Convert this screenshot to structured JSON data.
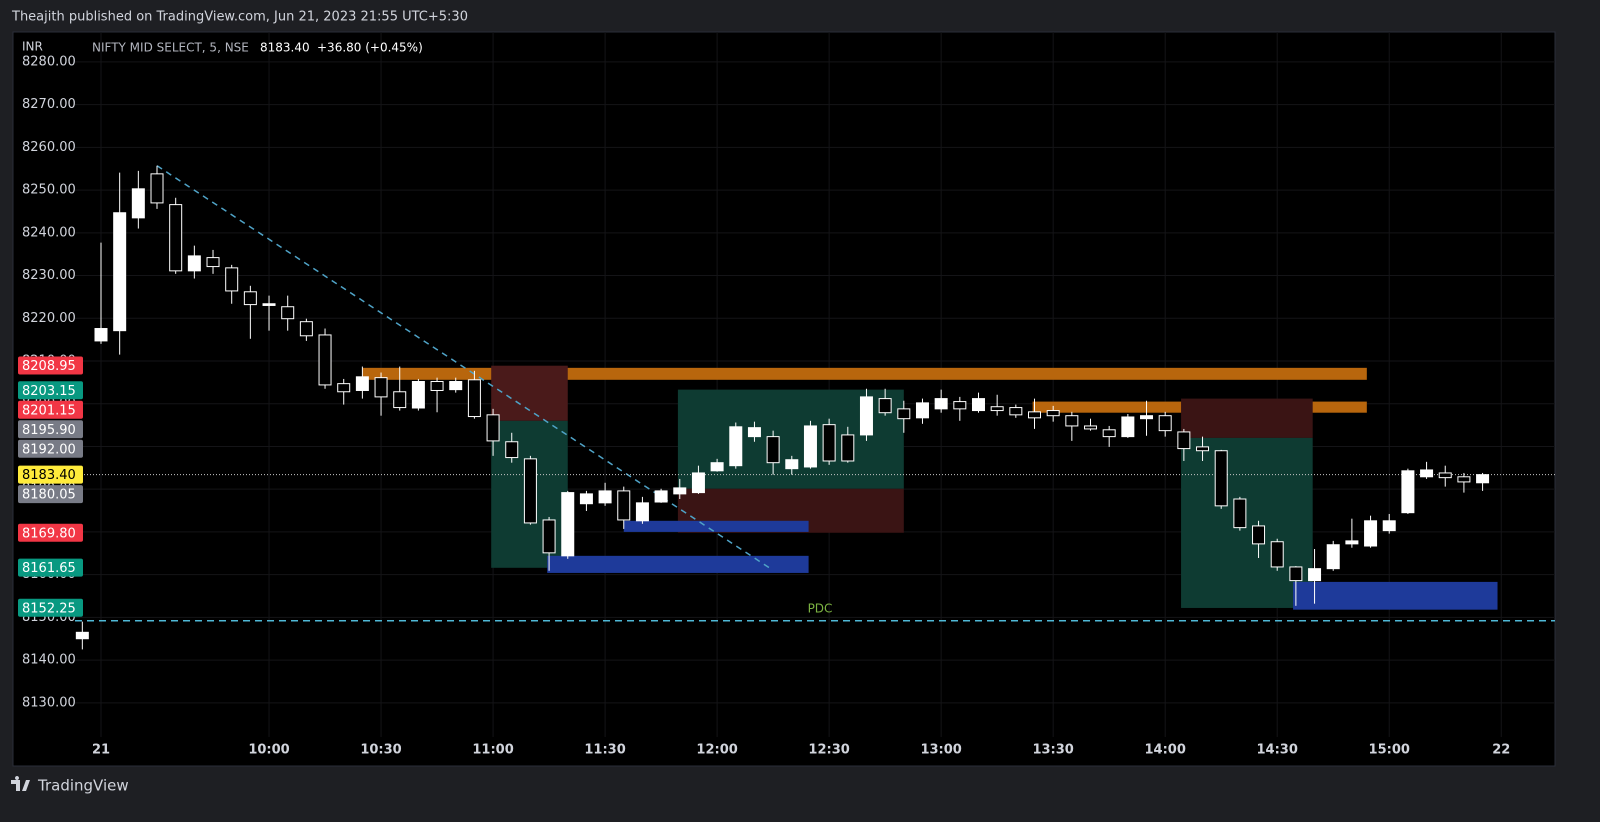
{
  "header": {
    "publisher": "Theajith published on TradingView.com, Jun 21, 2023 21:55 UTC+5:30"
  },
  "chart_data": {
    "type": "candlestick",
    "currency": "INR",
    "symbol": "NIFTY MID SELECT, 5, NSE",
    "last": "8183.40",
    "change": "+36.80 (+0.45%)",
    "up_color": "#ffffff",
    "down_color": "#000000",
    "wick_color": "#ffffff",
    "grid": true,
    "x": [
      -1,
      0,
      1,
      2,
      3,
      4,
      5,
      6,
      7,
      8,
      9,
      10,
      11,
      12,
      13,
      14,
      15,
      16,
      17,
      18,
      19,
      20,
      21,
      22,
      23,
      24,
      25,
      26,
      27,
      28,
      29,
      30,
      31,
      32,
      33,
      34,
      35,
      36,
      37,
      38,
      39,
      40,
      41,
      42,
      43,
      44,
      45,
      46,
      47,
      48,
      49,
      50,
      51,
      52,
      53,
      54,
      55,
      56,
      57,
      58,
      59,
      60,
      61,
      62,
      63,
      64,
      65,
      66,
      67,
      68,
      69,
      70,
      71,
      72,
      73,
      74
    ],
    "open": [
      8145,
      8214.7,
      8217.1,
      8243.5,
      8253.8,
      8246.6,
      8231.1,
      8234.2,
      8231.8,
      8226.2,
      8223,
      8222.7,
      8219.2,
      8216.1,
      8204.7,
      8203.1,
      8206.1,
      8202.8,
      8199,
      8205.2,
      8203.3,
      8205.6,
      8197.4,
      8191.1,
      8187.1,
      8172.8,
      8164.4,
      8176.6,
      8176.8,
      8179.6,
      8172.6,
      8177,
      8178.9,
      8179.2,
      8184.3,
      8185.5,
      8192.3,
      8192.3,
      8184.8,
      8185.2,
      8195.1,
      8192.7,
      8192.7,
      8201.2,
      8198.8,
      8196.7,
      8198.8,
      8200.5,
      8198.4,
      8199.3,
      8199.1,
      8198.1,
      8198.4,
      8197.2,
      8194.8,
      8193.9,
      8192.3,
      8196.5,
      8197.2,
      8193.4,
      8189.9,
      8189,
      8177.7,
      8171.4,
      8167.7,
      8161.8,
      8158.6,
      8161.4,
      8167.2,
      8166.7,
      8170.3,
      8174.5,
      8182.9,
      8183.8,
      8182.9,
      8181.5
    ],
    "high": [
      8149,
      8237.7,
      8254.1,
      8254.5,
      8255.7,
      8248.2,
      8237,
      8236,
      8232.5,
      8227.6,
      8225.3,
      8225.3,
      8219.9,
      8217.6,
      8205.8,
      8208.7,
      8207.3,
      8208.7,
      8205.8,
      8206.1,
      8206.1,
      8207.7,
      8198.8,
      8193.2,
      8187.8,
      8173.5,
      8179.6,
      8179.6,
      8181.5,
      8180.6,
      8178.2,
      8180.1,
      8182.4,
      8185.5,
      8187.1,
      8195.6,
      8195.8,
      8193.7,
      8187.8,
      8196,
      8196.5,
      8194.6,
      8203.5,
      8203.5,
      8200.7,
      8201.2,
      8203.3,
      8201.6,
      8202.6,
      8202.1,
      8199.8,
      8201.2,
      8199.5,
      8198.1,
      8196.5,
      8194.8,
      8197.6,
      8200.7,
      8198.1,
      8194.1,
      8192.3,
      8189.2,
      8178.2,
      8172.6,
      8168.4,
      8162,
      8166,
      8167.9,
      8173.1,
      8173.8,
      8174.2,
      8184.8,
      8186.4,
      8185.5,
      8183.8,
      8183.8
    ],
    "low": [
      8142.5,
      8214,
      8211.5,
      8241,
      8245.6,
      8230.4,
      8229.3,
      8230.4,
      8223.4,
      8215.2,
      8217.1,
      8217.1,
      8214.7,
      8203.5,
      8199.8,
      8201.2,
      8197.2,
      8198.4,
      8198.4,
      8198,
      8202.6,
      8196.5,
      8187.8,
      8186.2,
      8171.7,
      8160.9,
      8163.7,
      8174.9,
      8176.1,
      8170.7,
      8171.9,
      8176.8,
      8177.7,
      8178.9,
      8184.1,
      8184.8,
      8191.1,
      8183.4,
      8183.4,
      8184.8,
      8185.7,
      8186.2,
      8191.3,
      8197.2,
      8193.2,
      8195.3,
      8197.9,
      8196,
      8197.9,
      8197.2,
      8196.7,
      8194.1,
      8195.8,
      8191.3,
      8193.7,
      8189.9,
      8192,
      8192.5,
      8192.3,
      8186.6,
      8186.6,
      8175.4,
      8170.3,
      8163.9,
      8160.9,
      8152.7,
      8153.2,
      8160.9,
      8166.3,
      8166.3,
      8169.6,
      8174.2,
      8182.4,
      8180.6,
      8179.2,
      8179.6
    ],
    "close": [
      8146.5,
      8217.6,
      8244.7,
      8250.3,
      8247,
      8231.1,
      8234.6,
      8232.1,
      8226.4,
      8223.2,
      8223.4,
      8219.9,
      8215.9,
      8204.4,
      8202.8,
      8206.3,
      8201.6,
      8199.1,
      8205.2,
      8203.1,
      8205.2,
      8197,
      8191.3,
      8187.4,
      8172.1,
      8165.1,
      8179.2,
      8178.9,
      8179.6,
      8172.8,
      8176.8,
      8179.6,
      8180.3,
      8183.8,
      8186.2,
      8194.6,
      8194.4,
      8186.2,
      8186.9,
      8194.8,
      8186.6,
      8186.6,
      8201.6,
      8197.9,
      8196.5,
      8200.2,
      8201.2,
      8198.8,
      8201.2,
      8198.4,
      8197.4,
      8196.7,
      8197.2,
      8194.8,
      8194.1,
      8192.3,
      8196.9,
      8197.2,
      8193.7,
      8189.5,
      8189,
      8176.1,
      8171,
      8167.2,
      8161.8,
      8158.6,
      8161.4,
      8167,
      8167.9,
      8172.6,
      8172.6,
      8184.3,
      8184.5,
      8182.7,
      8181.7,
      8183.4
    ],
    "xlim": [
      -1.4,
      77.9
    ],
    "ylim": [
      8122,
      8287
    ],
    "xticks": [
      {
        "value": 0,
        "label": "21"
      },
      {
        "value": 9,
        "label": "10:00"
      },
      {
        "value": 15,
        "label": "10:30"
      },
      {
        "value": 21,
        "label": "11:00"
      },
      {
        "value": 27,
        "label": "11:30"
      },
      {
        "value": 33,
        "label": "12:00"
      },
      {
        "value": 39,
        "label": "12:30"
      },
      {
        "value": 45,
        "label": "13:00"
      },
      {
        "value": 51,
        "label": "13:30"
      },
      {
        "value": 57,
        "label": "14:00"
      },
      {
        "value": 63,
        "label": "14:30"
      },
      {
        "value": 69,
        "label": "15:00"
      },
      {
        "value": 75,
        "label": "22"
      }
    ],
    "yticks": [
      {
        "value": 8130,
        "label": "8130.00"
      },
      {
        "value": 8140,
        "label": "8140.00"
      },
      {
        "value": 8150,
        "label": "8150.00"
      },
      {
        "value": 8160,
        "label": "8160.00"
      },
      {
        "value": 8170,
        "label": "8170.00"
      },
      {
        "value": 8180,
        "label": "8180.00"
      },
      {
        "value": 8190,
        "label": "8190.00"
      },
      {
        "value": 8200,
        "label": "8200.00"
      },
      {
        "value": 8210,
        "label": "8210.00"
      },
      {
        "value": 8220,
        "label": "8220.00"
      },
      {
        "value": 8230,
        "label": "8230.00"
      },
      {
        "value": 8240,
        "label": "8240.00"
      },
      {
        "value": 8250,
        "label": "8250.00"
      },
      {
        "value": 8260,
        "label": "8260.00"
      },
      {
        "value": 8270,
        "label": "8270.00"
      },
      {
        "value": 8280,
        "label": "8280.00"
      }
    ],
    "price_labels": [
      {
        "value": 8208.95,
        "label": "8208.95",
        "color": "#f23645"
      },
      {
        "value": 8203.15,
        "label": "8203.15",
        "color": "#089981"
      },
      {
        "value": 8201.15,
        "label": "8201.15",
        "color": "#f23645"
      },
      {
        "value": 8195.9,
        "label": "8195.90",
        "color": "#787b86"
      },
      {
        "value": 8192,
        "label": "8192.00",
        "color": "#787b86"
      },
      {
        "value": 8183.4,
        "label": "8183.40",
        "color": "#ffeb3b"
      },
      {
        "value": 8180.05,
        "label": "8180.05",
        "color": "#787b86"
      },
      {
        "value": 8169.8,
        "label": "8169.80",
        "color": "#f23645"
      },
      {
        "value": 8161.65,
        "label": "8161.65",
        "color": "#089981"
      },
      {
        "value": 8152.25,
        "label": "8152.25",
        "color": "#089981"
      }
    ],
    "drawings": [
      {
        "kind": "rect",
        "x1": 14,
        "x2": 67.8,
        "y1": 8208.4,
        "y2": 8205.6,
        "color": "#b8660d"
      },
      {
        "kind": "rect",
        "x1": 49.9,
        "x2": 67.8,
        "y1": 8200.5,
        "y2": 8197.9,
        "color": "#b8660d"
      },
      {
        "kind": "rect",
        "x1": 20.9,
        "x2": 25,
        "y1": 8208.9,
        "y2": 8196,
        "color": "#4a1a1a"
      },
      {
        "kind": "rect",
        "x1": 20.9,
        "x2": 25,
        "y1": 8196,
        "y2": 8161.6,
        "color": "#0e3b32"
      },
      {
        "kind": "rect",
        "x1": 30.9,
        "x2": 43,
        "y1": 8203.3,
        "y2": 8180.1,
        "color": "#0e3b32"
      },
      {
        "kind": "rect",
        "x1": 30.9,
        "x2": 43,
        "y1": 8180.1,
        "y2": 8169.8,
        "color": "#3a1414"
      },
      {
        "kind": "rect",
        "x1": 57.85,
        "x2": 64.9,
        "y1": 8201.2,
        "y2": 8192,
        "color": "#3a1414"
      },
      {
        "kind": "rect",
        "x1": 57.85,
        "x2": 64.9,
        "y1": 8192,
        "y2": 8152.2,
        "color": "#0e3b32"
      },
      {
        "kind": "rect",
        "x1": 28,
        "x2": 37.9,
        "y1": 8172.6,
        "y2": 8170,
        "color": "#1e3a9a"
      },
      {
        "kind": "rect",
        "x1": 23.9,
        "x2": 37.9,
        "y1": 8164.4,
        "y2": 8160.4,
        "color": "#1e3a9a"
      },
      {
        "kind": "rect",
        "x1": 63.85,
        "x2": 74.8,
        "y1": 8158.3,
        "y2": 8151.8,
        "color": "#1e3a9a"
      },
      {
        "kind": "line",
        "x1": 3,
        "x2": 35.8,
        "y1": 8255.7,
        "y2": 8161.6,
        "color": "#4fa3c7"
      }
    ],
    "pdc": {
      "value": 8149.2,
      "label": "PDC",
      "line_color": "#4fb8d6",
      "label_color": "#7cb342"
    }
  },
  "footer": {
    "brand": "TradingView"
  }
}
